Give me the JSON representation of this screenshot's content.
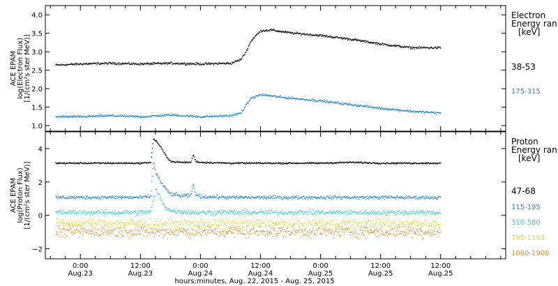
{
  "chart_data": [
    {
      "type": "scatter",
      "panel": "electron",
      "ylabel": [
        "ACE EPAM",
        "log(Electron Flux)",
        "[1/(cm²s ster MeV)]"
      ],
      "legend_title": [
        "Electron",
        "Energy ran",
        "[keV]"
      ],
      "ylim": [
        0.85,
        4.25
      ],
      "yticks": [
        1.0,
        1.5,
        2.0,
        2.5,
        3.0,
        3.5,
        4.0
      ],
      "yticklabels": [
        "1.0",
        "1.5",
        "2.0",
        "2.5",
        "3.0",
        "3.5",
        "4.0"
      ],
      "series": [
        {
          "name": "38-53",
          "color": "#000000",
          "x": [
            -5,
            0,
            6,
            12,
            18,
            24,
            30,
            32,
            33,
            34,
            35,
            36,
            38,
            42,
            48,
            54,
            60,
            66,
            72
          ],
          "y": [
            2.65,
            2.68,
            2.7,
            2.68,
            2.7,
            2.68,
            2.7,
            2.8,
            3.0,
            3.3,
            3.45,
            3.58,
            3.6,
            3.52,
            3.45,
            3.35,
            3.22,
            3.12,
            3.12
          ]
        },
        {
          "name": "175-315",
          "color": "#1f86d6",
          "x": [
            -5,
            0,
            6,
            12,
            18,
            24,
            30,
            32,
            33,
            34,
            36,
            40,
            48,
            54,
            60,
            66,
            72
          ],
          "y": [
            1.25,
            1.25,
            1.28,
            1.25,
            1.3,
            1.25,
            1.28,
            1.35,
            1.55,
            1.75,
            1.85,
            1.78,
            1.68,
            1.58,
            1.48,
            1.4,
            1.35
          ]
        }
      ]
    },
    {
      "type": "scatter",
      "panel": "proton",
      "ylabel": [
        "ACE EPAM",
        "log(Proton Flux)",
        "[1/(cm²s ster MeV)]"
      ],
      "legend_title": [
        "Proton",
        "Energy ran",
        "[keV]"
      ],
      "ylim": [
        -2.6,
        5.0
      ],
      "yticks": [
        -2,
        0,
        2,
        4
      ],
      "yticklabels": [
        "−2",
        "0",
        "2",
        "4"
      ],
      "series": [
        {
          "name": "47-68",
          "color": "#000000",
          "x": [
            -5,
            0,
            6,
            12,
            14,
            14.5,
            15,
            16,
            17,
            18,
            20,
            22,
            22.5,
            23,
            24,
            30,
            36,
            42,
            48,
            54,
            60,
            66,
            72
          ],
          "y": [
            3.15,
            3.15,
            3.15,
            3.15,
            3.2,
            4.6,
            4.5,
            4.1,
            3.6,
            3.25,
            3.2,
            3.2,
            3.65,
            3.25,
            3.2,
            3.15,
            3.15,
            3.15,
            3.15,
            3.2,
            3.15,
            3.15,
            3.15
          ]
        },
        {
          "name": "115-195",
          "color": "#1f86d6",
          "x": [
            -5,
            0,
            6,
            12,
            14,
            14.5,
            15,
            16,
            17,
            18,
            20,
            22,
            22.5,
            23,
            24,
            30,
            36,
            42,
            48,
            54,
            60,
            66,
            72
          ],
          "y": [
            1.1,
            1.1,
            1.1,
            1.1,
            1.15,
            3.2,
            2.6,
            2.0,
            1.6,
            1.3,
            1.2,
            1.2,
            1.9,
            1.25,
            1.15,
            1.1,
            1.1,
            1.1,
            1.1,
            1.1,
            1.1,
            1.1,
            1.1
          ]
        },
        {
          "name": "310-580",
          "color": "#2fd3c8",
          "x": [
            -5,
            0,
            6,
            12,
            14,
            15,
            16,
            17,
            18,
            20,
            24,
            30,
            36,
            42,
            48,
            54,
            60,
            66,
            72
          ],
          "y": [
            0.2,
            0.2,
            0.2,
            0.2,
            0.25,
            1.6,
            1.0,
            0.5,
            0.3,
            0.25,
            0.2,
            0.2,
            0.2,
            0.2,
            0.2,
            0.2,
            0.2,
            0.2,
            0.2
          ]
        },
        {
          "name": "795-1193",
          "color": "#d8e022",
          "x": [
            -5,
            0,
            6,
            12,
            18,
            24,
            30,
            36,
            42,
            48,
            54,
            60,
            66,
            72
          ],
          "y": [
            -0.45,
            -0.45,
            -0.45,
            -0.45,
            -0.45,
            -0.45,
            -0.45,
            -0.45,
            -0.45,
            -0.45,
            -0.45,
            -0.45,
            -0.45,
            -0.45
          ]
        },
        {
          "name": "1060-1900",
          "color": "#e88a1a",
          "x": [
            -5,
            0,
            6,
            12,
            18,
            24,
            30,
            36,
            42,
            48,
            54,
            60,
            66,
            72
          ],
          "y": [
            -0.95,
            -0.95,
            -0.95,
            -0.95,
            -0.95,
            -0.95,
            -0.95,
            -0.95,
            -0.95,
            -0.95,
            -0.95,
            -0.95,
            -0.95,
            -0.95
          ]
        }
      ]
    }
  ],
  "time_axis": {
    "xlim": [
      -7,
      85
    ],
    "major_ticks": [
      0,
      12,
      24,
      36,
      48,
      60,
      72
    ],
    "minor_ticks": [
      -6,
      -3,
      3,
      6,
      9,
      15,
      18,
      21,
      27,
      30,
      33,
      39,
      42,
      45,
      51,
      54,
      57,
      63,
      66,
      69,
      75,
      78,
      81,
      84
    ],
    "tick_time": [
      "0:00",
      "12:00",
      "0:00",
      "12:00",
      "0:00",
      "12:00"
    ],
    "tick_date": [
      "Aug.23",
      "Aug.23",
      "Aug.24",
      "Aug.24",
      "Aug.25",
      "Aug.25"
    ],
    "xlabel": "hours:minutes, Aug. 22, 2015 - Aug. 25, 2015"
  }
}
